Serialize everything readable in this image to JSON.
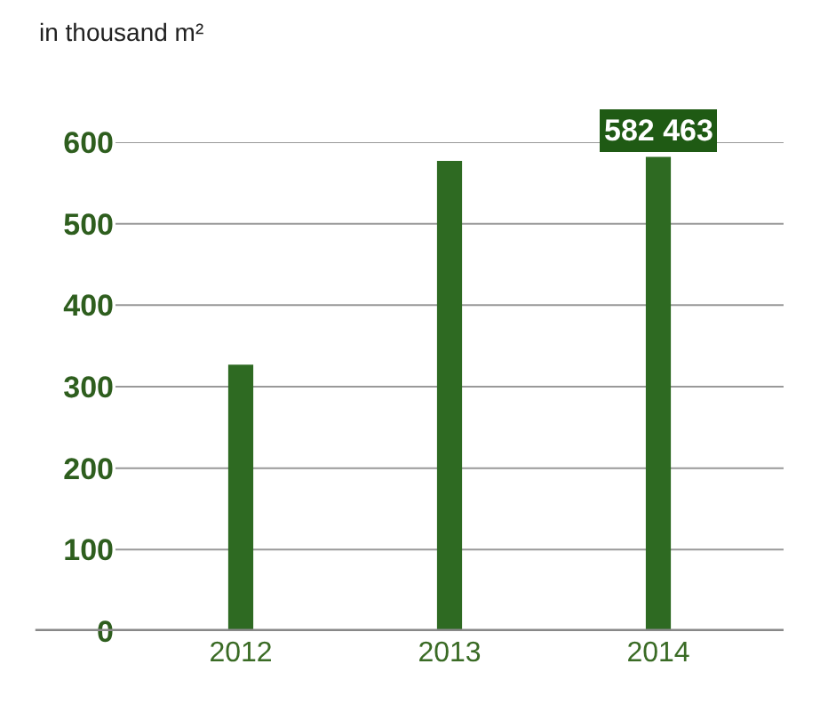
{
  "chart_data": {
    "type": "bar",
    "ylabel": "in thousand m²",
    "categories": [
      "2012",
      "2013",
      "2014"
    ],
    "values": [
      327,
      577,
      582
    ],
    "color": "#2e6a22",
    "annotations": [
      {
        "text": "582 463",
        "x": "2014",
        "y": 582
      }
    ],
    "ylim": [
      0,
      600
    ],
    "yticks": [
      0,
      100,
      200,
      300,
      400,
      500,
      600
    ],
    "grid": "y"
  }
}
